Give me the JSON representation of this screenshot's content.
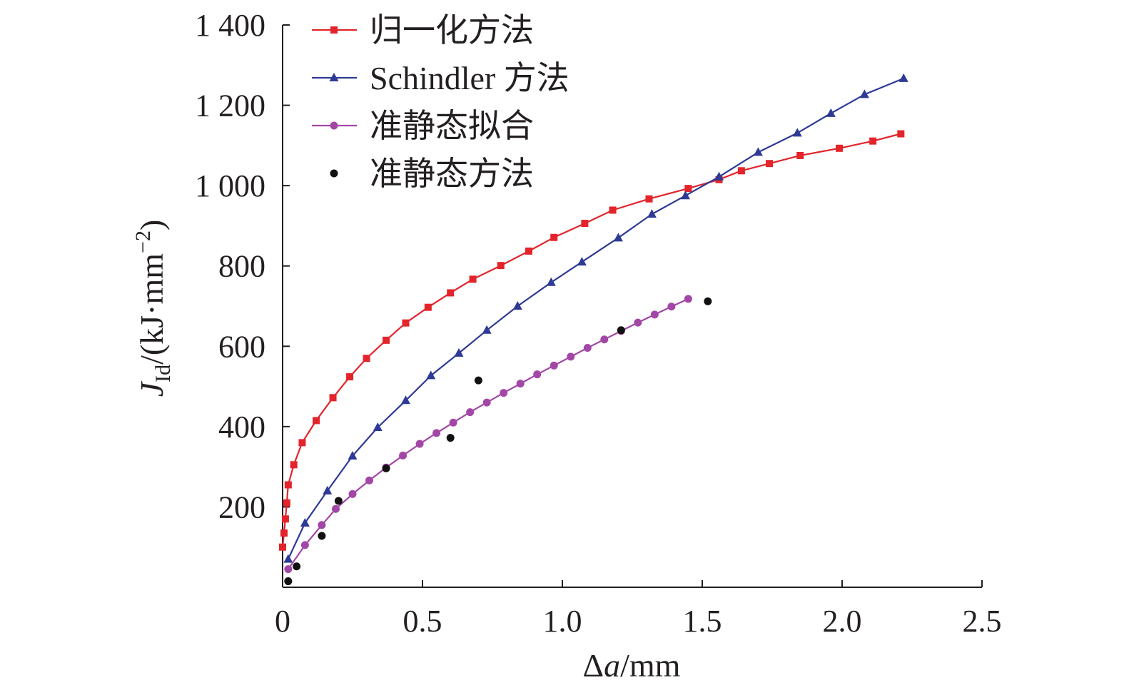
{
  "chart_data": {
    "type": "line",
    "title": "",
    "xlabel": "Δa/mm",
    "ylabel": "J_Id/(kJ·mm^-2)",
    "ylabel_parts": {
      "main": "J",
      "sub": "Id",
      "unit": "/(kJ·mm",
      "sup": "−2",
      "close": ")"
    },
    "xlabel_parts": {
      "delta": "Δ",
      "var": "a",
      "unit": "/mm"
    },
    "xlim": [
      0,
      2.5
    ],
    "ylim": [
      0,
      1400
    ],
    "xticks": [
      0,
      0.5,
      1.0,
      1.5,
      2.0,
      2.5
    ],
    "xtick_labels": [
      "0",
      "0.5",
      "1.0",
      "1.5",
      "2.0",
      "2.5"
    ],
    "yticks": [
      200,
      400,
      600,
      800,
      1000,
      1200,
      1400
    ],
    "ytick_labels": [
      "200",
      "400",
      "600",
      "800",
      "1 000",
      "1 200",
      "1 400"
    ],
    "grid": false,
    "legend_position": "top-left",
    "series": [
      {
        "name": "归一化方法",
        "color": "#e3242b",
        "marker": "square",
        "style": "line+marker",
        "x": [
          0.0,
          0.005,
          0.01,
          0.015,
          0.02,
          0.04,
          0.07,
          0.12,
          0.18,
          0.24,
          0.3,
          0.37,
          0.44,
          0.52,
          0.6,
          0.68,
          0.78,
          0.88,
          0.97,
          1.08,
          1.18,
          1.31,
          1.45,
          1.56,
          1.64,
          1.74,
          1.85,
          1.99,
          2.11,
          2.21
        ],
        "y": [
          100,
          135,
          170,
          210,
          255,
          305,
          360,
          415,
          472,
          524,
          570,
          615,
          658,
          697,
          733,
          767,
          801,
          837,
          871,
          906,
          939,
          967,
          993,
          1015,
          1037,
          1055,
          1075,
          1093,
          1111,
          1129
        ]
      },
      {
        "name": "Schindler 方法",
        "color": "#2e3a95",
        "marker": "triangle",
        "style": "line+marker",
        "x": [
          0.02,
          0.08,
          0.16,
          0.25,
          0.34,
          0.44,
          0.53,
          0.63,
          0.73,
          0.84,
          0.96,
          1.07,
          1.2,
          1.32,
          1.44,
          1.56,
          1.7,
          1.84,
          1.96,
          2.08,
          2.22
        ],
        "y": [
          70,
          160,
          240,
          327,
          398,
          465,
          527,
          583,
          640,
          700,
          759,
          810,
          870,
          929,
          975,
          1022,
          1083,
          1131,
          1180,
          1227,
          1267
        ]
      },
      {
        "name": "准静态拟合",
        "color": "#a347a7",
        "marker": "circle",
        "style": "line+marker",
        "x": [
          0.02,
          0.08,
          0.14,
          0.19,
          0.25,
          0.31,
          0.37,
          0.43,
          0.49,
          0.55,
          0.61,
          0.67,
          0.73,
          0.79,
          0.85,
          0.91,
          0.97,
          1.03,
          1.09,
          1.15,
          1.21,
          1.27,
          1.33,
          1.39,
          1.45
        ],
        "y": [
          45,
          105,
          155,
          195,
          232,
          266,
          298,
          328,
          357,
          384,
          410,
          436,
          460,
          484,
          507,
          530,
          552,
          574,
          596,
          617,
          638,
          659,
          679,
          699,
          718
        ]
      },
      {
        "name": "准静态方法",
        "color": "#111111",
        "marker": "dot",
        "style": "marker-only",
        "x": [
          0.02,
          0.05,
          0.14,
          0.2,
          0.37,
          0.6,
          0.7,
          1.21,
          1.52
        ],
        "y": [
          15,
          52,
          128,
          215,
          296,
          372,
          515,
          640,
          712
        ]
      }
    ]
  }
}
